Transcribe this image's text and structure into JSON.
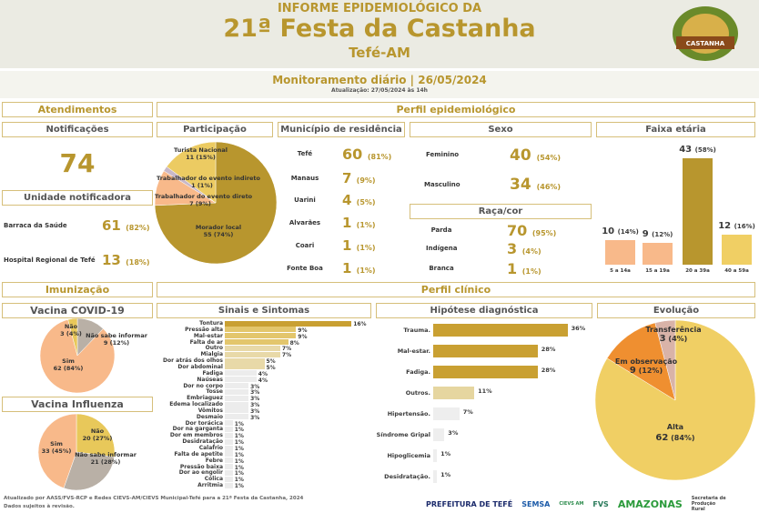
{
  "header": {
    "line1": "INFORME EPIDEMIOLÓGICO DA",
    "title": "21ª Festa da Castanha",
    "place": "Tefé-AM",
    "monitor": "Monitoramento diário | 26/05/2024",
    "update": "Atualização: 27/05/2024 às 14h",
    "logo_text": "XXI FESTA DA CASTANHA"
  },
  "colors": {
    "gold": "#b8962e",
    "peach": "#f8b98a",
    "yellow": "#eccb62",
    "light_yellow": "#f0cf64",
    "gray": "#b9b0a6",
    "lavender": "#c9b8c8",
    "orange": "#ef8f30",
    "rose": "#d9b3a8"
  },
  "atendimentos": {
    "title": "Atendimentos",
    "notif_title": "Notificações",
    "notif_value": "74",
    "unidade_title": "Unidade notificadora",
    "unidades": [
      {
        "name": "Barraca da Saúde",
        "value": "61",
        "pct": "(82%)"
      },
      {
        "name": "Hospital Regional de Tefé",
        "value": "13",
        "pct": "(18%)"
      }
    ]
  },
  "perfil": {
    "title": "Perfil epidemiológico",
    "participacao": {
      "title": "Participação",
      "slices": [
        {
          "name": "Morador local",
          "value": 55,
          "label": "55 (74%)",
          "color": "#b8962e"
        },
        {
          "name": "Trabalhador do evento direto",
          "value": 7,
          "label": "7 (9%)",
          "color": "#f8b98a"
        },
        {
          "name": "Trabalhador do evento indireto",
          "value": 1,
          "label": "1 (1%)",
          "color": "#c9b8c8"
        },
        {
          "name": "Turista Nacional",
          "value": 11,
          "label": "11 (15%)",
          "color": "#eccb62"
        }
      ]
    },
    "municipio": {
      "title": "Município de residência",
      "rows": [
        {
          "name": "Tefé",
          "value": "60",
          "pct": "(81%)"
        },
        {
          "name": "Manaus",
          "value": "7",
          "pct": "(9%)"
        },
        {
          "name": "Uarini",
          "value": "4",
          "pct": "(5%)"
        },
        {
          "name": "Alvarães",
          "value": "1",
          "pct": "(1%)"
        },
        {
          "name": "Coari",
          "value": "1",
          "pct": "(1%)"
        },
        {
          "name": "Fonte Boa",
          "value": "1",
          "pct": "(1%)"
        }
      ]
    },
    "sexo": {
      "title": "Sexo",
      "rows": [
        {
          "name": "Feminino",
          "value": "40",
          "pct": "(54%)"
        },
        {
          "name": "Masculino",
          "value": "34",
          "pct": "(46%)"
        }
      ]
    },
    "raca": {
      "title": "Raça/cor",
      "rows": [
        {
          "name": "Parda",
          "value": "70",
          "pct": "(95%)"
        },
        {
          "name": "Indígena",
          "value": "3",
          "pct": "(4%)"
        },
        {
          "name": "Branca",
          "value": "1",
          "pct": "(1%)"
        }
      ]
    },
    "faixa": {
      "title": "Faixa etária",
      "bars": [
        {
          "cat": "5 a 14a",
          "value": 10,
          "num": "10",
          "pct": "(14%)",
          "color": "#f8b98a"
        },
        {
          "cat": "15 a 19a",
          "value": 9,
          "num": "9",
          "pct": "(12%)",
          "color": "#f8b98a"
        },
        {
          "cat": "20 a 39a",
          "value": 43,
          "num": "43",
          "pct": "(58%)",
          "color": "#b8962e"
        },
        {
          "cat": "40 a 59a",
          "value": 12,
          "num": "12",
          "pct": "(16%)",
          "color": "#f0cf64"
        }
      ]
    }
  },
  "imunizacao": {
    "title": "Imunização",
    "covid": {
      "title": "Vacina COVID-19",
      "slices": [
        {
          "name": "Não sabe informar",
          "value": 9,
          "label": "9 (12%)",
          "color": "#b9b0a6"
        },
        {
          "name": "Sim",
          "value": 62,
          "label": "62 (84%)",
          "color": "#f8b98a"
        },
        {
          "name": "Não",
          "value": 3,
          "label": "3 (4%)",
          "color": "#e8c85a"
        }
      ]
    },
    "influenza": {
      "title": "Vacina Influenza",
      "slices": [
        {
          "name": "Não",
          "value": 20,
          "label": "20 (27%)",
          "color": "#e8c85a"
        },
        {
          "name": "Não sabe informar",
          "value": 21,
          "label": "21 (28%)",
          "color": "#b9b0a6"
        },
        {
          "name": "Sim",
          "value": 33,
          "label": "33 (45%)",
          "color": "#f8b98a"
        }
      ]
    }
  },
  "clinico": {
    "title": "Perfil clínico",
    "sinais": {
      "title": "Sinais e Sintomas",
      "items": [
        [
          "Tontura",
          16
        ],
        [
          "Pressão alta",
          9
        ],
        [
          "Mal-estar",
          9
        ],
        [
          "Falta de ar",
          8
        ],
        [
          "Outro",
          7
        ],
        [
          "Mialgia",
          7
        ],
        [
          "Dor atrás dos olhos",
          5
        ],
        [
          "Dor abdominal",
          5
        ],
        [
          "Fadiga",
          4
        ],
        [
          "Naúseas",
          4
        ],
        [
          "Dor no corpo",
          3
        ],
        [
          "Tosse",
          3
        ],
        [
          "Embriaguez",
          3
        ],
        [
          "Edema localizado",
          3
        ],
        [
          "Vômitos",
          3
        ],
        [
          "Desmaio",
          3
        ],
        [
          "Dor torácica",
          1
        ],
        [
          "Dor na garganta",
          1
        ],
        [
          "Dor em membros",
          1
        ],
        [
          "Desidratação",
          1
        ],
        [
          "Calafrio",
          1
        ],
        [
          "Falta de apetite",
          1
        ],
        [
          "Febre",
          1
        ],
        [
          "Pressão baixa",
          1
        ],
        [
          "Dor ao engolir",
          1
        ],
        [
          "Cólica",
          1
        ],
        [
          "Arritmia",
          1
        ]
      ]
    },
    "hipotese": {
      "title": "Hipótese diagnóstica",
      "items": [
        [
          "Trauma.",
          36
        ],
        [
          "Mal-estar.",
          28
        ],
        [
          "Fadiga.",
          28
        ],
        [
          "Outros.",
          11
        ],
        [
          "Hipertensão.",
          7
        ],
        [
          "Síndrome Gripal",
          3
        ],
        [
          "Hipoglicemia",
          1
        ],
        [
          "Desidratação.",
          1
        ]
      ]
    },
    "evolucao": {
      "title": "Evolução",
      "slices": [
        {
          "name": "Alta",
          "value": 62,
          "num": "62",
          "pct": "(84%)",
          "color": "#f0cf64"
        },
        {
          "name": "Em observação",
          "value": 9,
          "num": "9",
          "pct": "(12%)",
          "color": "#ef8f30"
        },
        {
          "name": "Transferência",
          "value": 3,
          "num": "3",
          "pct": "(4%)",
          "color": "#d9b3a8"
        }
      ]
    }
  },
  "footer": {
    "line1": "Atualizado por AASS/FVS-RCP e Redes CIEVS-AM/CIEVS Municipal-Tefé para a 21ª Festa da Castanha, 2024",
    "line2": "Dados sujeitos à revisão.",
    "logos": [
      "PREFEITURA DE TEFÉ",
      "SEMSA",
      "CIEVS AM",
      "FVS",
      "AMAZONAS",
      "Secretaria de Produção Rural"
    ]
  }
}
